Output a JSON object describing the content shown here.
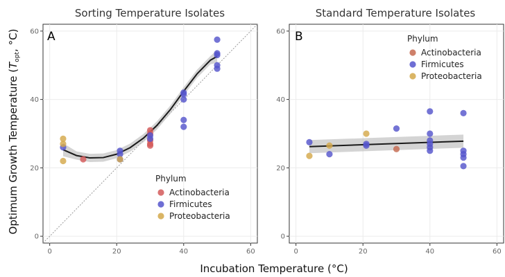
{
  "chart_data": [
    {
      "type": "scatter",
      "panel_label": "A",
      "title": "Sorting Temperature Isolates",
      "xlim": [
        -2,
        62
      ],
      "ylim": [
        -2,
        62
      ],
      "x_ticks": [
        0,
        20,
        40,
        60
      ],
      "y_ticks": [
        0,
        20,
        40,
        60
      ],
      "grid": true,
      "legend": {
        "title": "Phylum",
        "placement": "bottom-right"
      },
      "series": [
        {
          "name": "Actinobacteria",
          "color": "#d45a5a",
          "points": [
            [
              10,
              22.5
            ],
            [
              30,
              31
            ],
            [
              30,
              30
            ],
            [
              30,
              28
            ],
            [
              30,
              27
            ],
            [
              30,
              26.5
            ]
          ]
        },
        {
          "name": "Firmicutes",
          "color": "#5555cc",
          "points": [
            [
              4,
              26
            ],
            [
              21,
              25
            ],
            [
              21,
              24
            ],
            [
              21,
              22.5
            ],
            [
              30,
              29.5
            ],
            [
              30,
              28.5
            ],
            [
              40,
              42
            ],
            [
              40,
              41.5
            ],
            [
              40,
              40
            ],
            [
              40,
              34
            ],
            [
              40,
              32
            ],
            [
              50,
              57.5
            ],
            [
              50,
              53.5
            ],
            [
              50,
              53
            ],
            [
              50,
              50
            ],
            [
              50,
              49
            ]
          ]
        },
        {
          "name": "Proteobacteria",
          "color": "#d4a84a",
          "points": [
            [
              4,
              28.5
            ],
            [
              4,
              27
            ],
            [
              4,
              22
            ],
            [
              21,
              22.5
            ]
          ]
        }
      ],
      "fit": {
        "type": "quadratic",
        "x": [
          4,
          8,
          12,
          16,
          20,
          24,
          28,
          32,
          36,
          40,
          44,
          48,
          50
        ],
        "y": [
          25.3,
          23.6,
          22.9,
          23.0,
          24.0,
          25.9,
          28.7,
          32.4,
          37.0,
          42.4,
          47.5,
          51.5,
          52.6
        ],
        "band": 1.2,
        "color": "#1a1a1a"
      },
      "reference_line": "y = x"
    },
    {
      "type": "scatter",
      "panel_label": "B",
      "title": "Standard Temperature Isolates",
      "xlim": [
        -2,
        62
      ],
      "ylim": [
        -2,
        62
      ],
      "x_ticks": [
        0,
        20,
        40,
        60
      ],
      "y_ticks": [
        0,
        20,
        40,
        60
      ],
      "grid": true,
      "legend": {
        "title": "Phylum",
        "placement": "top-right"
      },
      "series": [
        {
          "name": "Actinobacteria",
          "color": "#c66a50",
          "points": [
            [
              30,
              25.5
            ]
          ]
        },
        {
          "name": "Firmicutes",
          "color": "#5555cc",
          "points": [
            [
              4,
              27.5
            ],
            [
              10,
              24
            ],
            [
              21,
              26.5
            ],
            [
              21,
              27
            ],
            [
              30,
              31.5
            ],
            [
              40,
              36.5
            ],
            [
              40,
              30
            ],
            [
              40,
              28
            ],
            [
              40,
              27
            ],
            [
              40,
              26
            ],
            [
              40,
              25
            ],
            [
              50,
              36
            ],
            [
              50,
              25
            ],
            [
              50,
              24
            ],
            [
              50,
              23
            ],
            [
              50,
              20.5
            ]
          ]
        },
        {
          "name": "Proteobacteria",
          "color": "#d4a84a",
          "points": [
            [
              4,
              23.5
            ],
            [
              10,
              26.5
            ],
            [
              21,
              30
            ]
          ]
        }
      ],
      "fit": {
        "type": "linear",
        "x": [
          4,
          50
        ],
        "y": [
          26.2,
          27.8
        ],
        "band": 1.2,
        "color": "#1a1a1a"
      }
    }
  ],
  "shared_labels": {
    "xlabel": "Incubation Temperature (°C)",
    "ylabel_main": "Optimum Growth Temperature (",
    "ylabel_T": "T",
    "ylabel_sub": "opt",
    "ylabel_end": ", °C)"
  }
}
